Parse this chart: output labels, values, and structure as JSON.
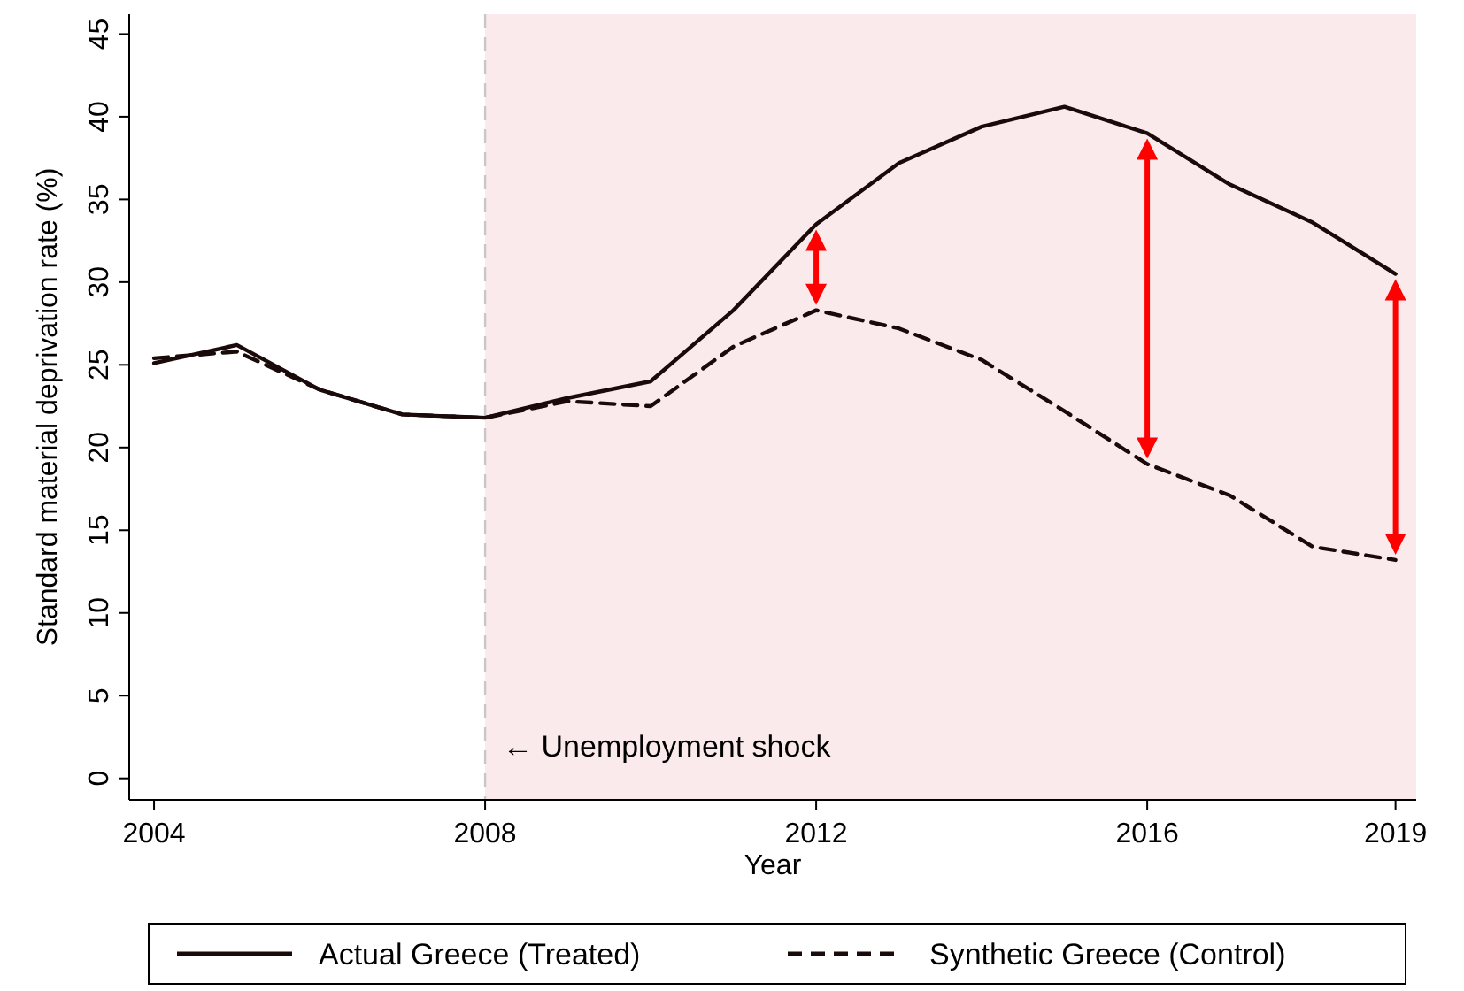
{
  "chart_data": {
    "type": "line",
    "xlabel": "Year",
    "ylabel": "Standard material deprivation rate (%)",
    "x": [
      2004,
      2005,
      2006,
      2007,
      2008,
      2009,
      2010,
      2011,
      2012,
      2013,
      2014,
      2015,
      2016,
      2017,
      2018,
      2019
    ],
    "series": [
      {
        "name": "Actual Greece (Treated)",
        "color": "#1a0a0a",
        "line_style": "solid",
        "values": [
          25.1,
          26.2,
          23.5,
          22.0,
          21.8,
          23.0,
          24.0,
          28.3,
          33.5,
          37.2,
          39.4,
          40.6,
          39.0,
          35.9,
          33.6,
          30.5
        ]
      },
      {
        "name": "Synthetic Greece (Control)",
        "color": "#1a0a0a",
        "line_style": "dashed",
        "values": [
          25.4,
          25.8,
          23.5,
          22.0,
          21.8,
          22.8,
          22.5,
          26.1,
          28.3,
          27.2,
          25.3,
          22.2,
          19.0,
          17.1,
          14.0,
          13.2
        ]
      }
    ],
    "xlim": [
      2003.7,
      2019.25
    ],
    "xticks": [
      2004,
      2008,
      2012,
      2016,
      2019
    ],
    "ylim": [
      -1.3,
      46.2
    ],
    "yticks": [
      0,
      5,
      10,
      15,
      20,
      25,
      30,
      35,
      40,
      45
    ],
    "ref_lines": [
      {
        "axis": "x",
        "value": 2008,
        "color": "#c8c8c8",
        "line_style": "dashed"
      }
    ],
    "bands": [
      {
        "axis": "x",
        "from": 2008,
        "to": 2019.25,
        "color": "#fbeaec"
      }
    ],
    "annotations": [
      {
        "text": "← Unemployment shock",
        "x": 2008,
        "y": 1.8
      }
    ],
    "legend": "bottom",
    "grid": false,
    "marker": "none"
  }
}
